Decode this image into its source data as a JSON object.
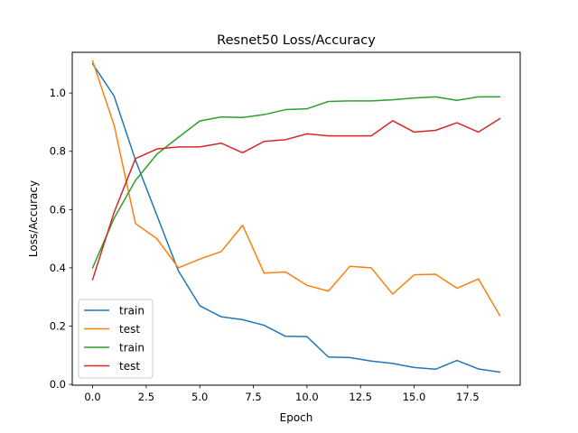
{
  "chart_data": {
    "type": "line",
    "title": "Resnet50 Loss/Accuracy",
    "xlabel": "Epoch",
    "ylabel": "Loss/Accuracy",
    "xlim": [
      -0.95,
      19.95
    ],
    "ylim": [
      -0.0028,
      1.1398
    ],
    "xticks": [
      0,
      2.5,
      5,
      7.5,
      10,
      12.5,
      15,
      17.5
    ],
    "xtick_labels": [
      "0.0",
      "2.5",
      "5.0",
      "7.5",
      "10.0",
      "12.5",
      "15.0",
      "17.5"
    ],
    "yticks": [
      0.0,
      0.2,
      0.4,
      0.6,
      0.8,
      1.0
    ],
    "ytick_labels": [
      "0.0",
      "0.2",
      "0.4",
      "0.6",
      "0.8",
      "1.0"
    ],
    "grid": false,
    "legend_position": "lower-left",
    "x": [
      0,
      1,
      2,
      3,
      4,
      5,
      6,
      7,
      8,
      9,
      10,
      11,
      12,
      13,
      14,
      15,
      16,
      17,
      18,
      19
    ],
    "series": [
      {
        "name": "train",
        "color": "#1f77b4",
        "values": [
          1.1,
          0.99,
          0.77,
          0.58,
          0.39,
          0.27,
          0.232,
          0.222,
          0.203,
          0.165,
          0.164,
          0.094,
          0.092,
          0.08,
          0.072,
          0.058,
          0.052,
          0.082,
          0.053,
          0.042
        ]
      },
      {
        "name": "test",
        "color": "#ff7f0e",
        "values": [
          1.11,
          0.89,
          0.552,
          0.5,
          0.4,
          0.43,
          0.456,
          0.546,
          0.382,
          0.386,
          0.34,
          0.32,
          0.405,
          0.4,
          0.31,
          0.376,
          0.378,
          0.33,
          0.362,
          0.236
        ]
      },
      {
        "name": "train",
        "color": "#2ca02c",
        "values": [
          0.4,
          0.57,
          0.7,
          0.79,
          0.848,
          0.904,
          0.918,
          0.916,
          0.926,
          0.943,
          0.946,
          0.971,
          0.973,
          0.973,
          0.977,
          0.983,
          0.987,
          0.975,
          0.987,
          0.987
        ]
      },
      {
        "name": "test",
        "color": "#d62728",
        "values": [
          0.36,
          0.59,
          0.775,
          0.808,
          0.815,
          0.815,
          0.828,
          0.795,
          0.834,
          0.84,
          0.86,
          0.853,
          0.853,
          0.853,
          0.905,
          0.866,
          0.872,
          0.898,
          0.866,
          0.912
        ]
      }
    ]
  }
}
